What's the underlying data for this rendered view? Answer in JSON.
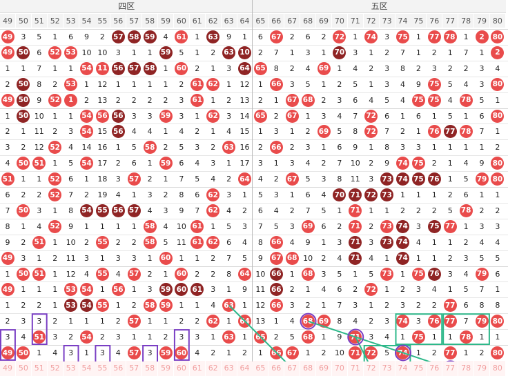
{
  "zones": [
    {
      "label": "四区",
      "start": 49,
      "end": 64
    },
    {
      "label": "五区",
      "start": 65,
      "end": 80
    }
  ],
  "column_numbers": [
    49,
    50,
    51,
    52,
    53,
    54,
    55,
    56,
    57,
    58,
    59,
    60,
    61,
    62,
    63,
    64,
    65,
    66,
    67,
    68,
    69,
    70,
    71,
    72,
    73,
    74,
    75,
    76,
    77,
    78,
    79,
    80
  ],
  "colors": {
    "hit": "#e94b4b",
    "hit_dark": "#8f2424",
    "box_purple": "#7a3fc4",
    "line_green": "#2eb88a"
  },
  "rows": [
    [
      "h",
      "3",
      "5",
      "1",
      "6",
      "9",
      "2",
      "d",
      "d",
      "d",
      "4",
      "h",
      "1",
      "d",
      "9",
      "1",
      "6",
      "h",
      "2",
      "6",
      "2",
      "h",
      "1",
      "h",
      "3",
      "h",
      "1",
      "h",
      "h",
      "1",
      "h",
      "h"
    ],
    [
      "h",
      "d",
      "6",
      "h",
      "h",
      "10",
      "10",
      "3",
      "1",
      "1",
      "d",
      "5",
      "1",
      "2",
      "d",
      "d",
      "2",
      "7",
      "1",
      "3",
      "1",
      "d",
      "3",
      "1",
      "2",
      "7",
      "1",
      "2",
      "1",
      "7",
      "1",
      "h"
    ],
    [
      "1",
      "1",
      "7",
      "1",
      "1",
      "h",
      "h",
      "d",
      "d",
      "d",
      "1",
      "h",
      "2",
      "1",
      "3",
      "d",
      "h",
      "8",
      "2",
      "4",
      "h",
      "1",
      "4",
      "2",
      "3",
      "8",
      "2",
      "3",
      "2",
      "2",
      "3",
      "4"
    ],
    [
      "2",
      "d",
      "8",
      "2",
      "h",
      "1",
      "12",
      "1",
      "1",
      "1",
      "1",
      "2",
      "h",
      "h",
      "1",
      "12",
      "1",
      "h",
      "3",
      "5",
      "1",
      "2",
      "5",
      "1",
      "3",
      "4",
      "9",
      "h",
      "5",
      "4",
      "3",
      "h"
    ],
    [
      "h",
      "d",
      "9",
      "h",
      "h",
      "2",
      "13",
      "2",
      "2",
      "2",
      "2",
      "3",
      "h",
      "1",
      "2",
      "13",
      "2",
      "1",
      "h",
      "h",
      "2",
      "3",
      "6",
      "4",
      "5",
      "4",
      "h",
      "h",
      "4",
      "h",
      "5",
      "1"
    ],
    [
      "1",
      "d",
      "10",
      "1",
      "1",
      "h",
      "h",
      "d",
      "3",
      "3",
      "h",
      "3",
      "1",
      "h",
      "3",
      "14",
      "h",
      "2",
      "h",
      "1",
      "3",
      "4",
      "7",
      "h",
      "6",
      "1",
      "6",
      "1",
      "5",
      "1",
      "6",
      "h"
    ],
    [
      "2",
      "1",
      "11",
      "2",
      "3",
      "h",
      "15",
      "d",
      "4",
      "4",
      "1",
      "4",
      "2",
      "1",
      "4",
      "15",
      "1",
      "3",
      "1",
      "2",
      "h",
      "5",
      "8",
      "h",
      "7",
      "2",
      "1",
      "h",
      "d",
      "h",
      "7",
      "1"
    ],
    [
      "3",
      "2",
      "12",
      "h",
      "4",
      "14",
      "16",
      "1",
      "5",
      "h",
      "2",
      "5",
      "3",
      "2",
      "h",
      "16",
      "2",
      "h",
      "2",
      "3",
      "1",
      "6",
      "9",
      "1",
      "8",
      "3",
      "3",
      "1",
      "1",
      "1",
      "1",
      "2"
    ],
    [
      "4",
      "h",
      "h",
      "1",
      "5",
      "h",
      "17",
      "2",
      "6",
      "1",
      "h",
      "6",
      "4",
      "3",
      "1",
      "17",
      "3",
      "1",
      "3",
      "4",
      "2",
      "7",
      "10",
      "2",
      "9",
      "h",
      "h",
      "2",
      "1",
      "4",
      "9",
      "h"
    ],
    [
      "h",
      "1",
      "1",
      "h",
      "6",
      "1",
      "18",
      "3",
      "h",
      "2",
      "1",
      "7",
      "5",
      "4",
      "2",
      "h",
      "4",
      "2",
      "h",
      "5",
      "3",
      "8",
      "11",
      "3",
      "d",
      "d",
      "d",
      "d",
      "1",
      "5",
      "h",
      "h"
    ],
    [
      "6",
      "2",
      "2",
      "h",
      "7",
      "2",
      "19",
      "4",
      "1",
      "3",
      "2",
      "8",
      "6",
      "h",
      "3",
      "1",
      "5",
      "3",
      "1",
      "6",
      "4",
      "d",
      "d",
      "d",
      "d",
      "1",
      "1",
      "1",
      "2",
      "6",
      "1",
      "1"
    ],
    [
      "7",
      "h",
      "3",
      "1",
      "8",
      "d",
      "d",
      "d",
      "d",
      "4",
      "3",
      "9",
      "7",
      "h",
      "4",
      "2",
      "6",
      "4",
      "2",
      "7",
      "5",
      "1",
      "h",
      "1",
      "1",
      "2",
      "2",
      "2",
      "5",
      "h",
      "2",
      "2"
    ],
    [
      "8",
      "1",
      "4",
      "h",
      "9",
      "1",
      "1",
      "1",
      "1",
      "h",
      "4",
      "10",
      "h",
      "1",
      "5",
      "3",
      "7",
      "5",
      "3",
      "h",
      "6",
      "2",
      "h",
      "2",
      "h",
      "d",
      "3",
      "d",
      "h",
      "1",
      "3",
      "3"
    ],
    [
      "9",
      "2",
      "h",
      "1",
      "10",
      "2",
      "h",
      "2",
      "2",
      "h",
      "5",
      "11",
      "h",
      "h",
      "6",
      "4",
      "8",
      "h",
      "4",
      "9",
      "1",
      "3",
      "d",
      "3",
      "d",
      "d",
      "4",
      "1",
      "1",
      "2",
      "4",
      "4"
    ],
    [
      "h",
      "3",
      "1",
      "2",
      "11",
      "3",
      "1",
      "3",
      "3",
      "1",
      "h",
      "1",
      "1",
      "2",
      "7",
      "5",
      "9",
      "h",
      "h",
      "10",
      "2",
      "4",
      "d",
      "4",
      "1",
      "d",
      "1",
      "1",
      "2",
      "3",
      "5",
      "5"
    ],
    [
      "1",
      "h",
      "h",
      "1",
      "12",
      "4",
      "h",
      "4",
      "h",
      "2",
      "1",
      "h",
      "2",
      "2",
      "8",
      "h",
      "10",
      "d",
      "1",
      "h",
      "3",
      "5",
      "1",
      "5",
      "h",
      "1",
      "h",
      "d",
      "3",
      "4",
      "h",
      "6"
    ],
    [
      "h",
      "1",
      "1",
      "1",
      "h",
      "h",
      "1",
      "h",
      "1",
      "3",
      "d",
      "d",
      "d",
      "3",
      "1",
      "9",
      "11",
      "d",
      "2",
      "1",
      "4",
      "6",
      "2",
      "h",
      "1",
      "2",
      "3",
      "4",
      "1",
      "5",
      "7",
      "1"
    ],
    [
      "1",
      "2",
      "2",
      "1",
      "d",
      "d",
      "h",
      "1",
      "2",
      "h",
      "h",
      "1",
      "1",
      "4",
      "h",
      "1",
      "12",
      "h",
      "3",
      "2",
      "1",
      "7",
      "3",
      "1",
      "2",
      "3",
      "2",
      "2",
      "h",
      "6",
      "8",
      "8"
    ],
    [
      "2",
      "3",
      "3",
      "2",
      "1",
      "1",
      "1",
      "2",
      "h",
      "1",
      "1",
      "2",
      "2",
      "h",
      "1",
      "h",
      "13",
      "1",
      "4",
      "h",
      "h",
      "8",
      "4",
      "2",
      "3",
      "h",
      "3",
      "h",
      "h",
      "7",
      "h",
      "h"
    ],
    [
      "3",
      "4",
      "h",
      "3",
      "2",
      "h",
      "2",
      "3",
      "1",
      "1",
      "2",
      "3",
      "3",
      "1",
      "h",
      "1",
      "h",
      "2",
      "5",
      "h",
      "1",
      "9",
      "h",
      "3",
      "4",
      "1",
      "h",
      "1",
      "1",
      "h",
      "1",
      "1"
    ],
    [
      "h",
      "h",
      "1",
      "4",
      "3",
      "1",
      "3",
      "4",
      "h",
      "3",
      "h",
      "h",
      "4",
      "2",
      "1",
      "2",
      "1",
      "h",
      "h",
      "1",
      "2",
      "10",
      "h",
      "h",
      "5",
      "h",
      "1",
      "2",
      "h",
      "1",
      "2",
      "h"
    ]
  ],
  "row_values": [
    [
      "49",
      "3",
      "5",
      "1",
      "6",
      "9",
      "2",
      "57",
      "58",
      "59",
      "4",
      "61",
      "1",
      "63",
      "9",
      "1",
      "6",
      "67",
      "2",
      "6",
      "2",
      "72",
      "1",
      "74",
      "3",
      "75",
      "1",
      "77",
      "78",
      "1",
      "2",
      "80"
    ],
    [
      "49",
      "50",
      "6",
      "52",
      "53",
      "10",
      "10",
      "3",
      "1",
      "1",
      "59",
      "5",
      "1",
      "2",
      "63",
      "10",
      "2",
      "7",
      "1",
      "3",
      "1",
      "70",
      "3",
      "1",
      "2",
      "7",
      "1",
      "2",
      "1",
      "7",
      "1",
      "2"
    ],
    [
      "1",
      "1",
      "7",
      "1",
      "1",
      "54",
      "11",
      "56",
      "57",
      "58",
      "1",
      "60",
      "2",
      "1",
      "3",
      "64",
      "65",
      "8",
      "2",
      "4",
      "69",
      "1",
      "4",
      "2",
      "3",
      "8",
      "2",
      "3",
      "2",
      "2",
      "3",
      "4"
    ],
    [
      "2",
      "50",
      "8",
      "2",
      "53",
      "1",
      "12",
      "1",
      "1",
      "1",
      "1",
      "2",
      "61",
      "62",
      "1",
      "12",
      "1",
      "66",
      "3",
      "5",
      "1",
      "2",
      "5",
      "1",
      "3",
      "4",
      "9",
      "75",
      "5",
      "4",
      "3",
      "80"
    ],
    [
      "49",
      "50",
      "9",
      "52",
      "1",
      "2",
      "13",
      "2",
      "2",
      "2",
      "2",
      "3",
      "61",
      "1",
      "2",
      "13",
      "2",
      "1",
      "67",
      "68",
      "2",
      "3",
      "6",
      "4",
      "5",
      "4",
      "75",
      "75",
      "4",
      "78",
      "5",
      "1"
    ],
    [
      "1",
      "50",
      "10",
      "1",
      "1",
      "54",
      "56",
      "56",
      "3",
      "3",
      "59",
      "3",
      "1",
      "62",
      "3",
      "14",
      "65",
      "2",
      "67",
      "1",
      "3",
      "4",
      "7",
      "72",
      "6",
      "1",
      "6",
      "1",
      "5",
      "1",
      "6",
      "80"
    ],
    [
      "2",
      "1",
      "11",
      "2",
      "3",
      "54",
      "15",
      "56",
      "4",
      "4",
      "1",
      "4",
      "2",
      "1",
      "4",
      "15",
      "1",
      "3",
      "1",
      "2",
      "69",
      "5",
      "8",
      "72",
      "7",
      "2",
      "1",
      "76",
      "77",
      "78",
      "7",
      "1"
    ],
    [
      "3",
      "2",
      "12",
      "52",
      "4",
      "14",
      "16",
      "1",
      "5",
      "58",
      "2",
      "5",
      "3",
      "2",
      "63",
      "16",
      "2",
      "66",
      "2",
      "3",
      "1",
      "6",
      "9",
      "1",
      "8",
      "3",
      "3",
      "1",
      "1",
      "1",
      "1",
      "2"
    ],
    [
      "4",
      "50",
      "51",
      "1",
      "5",
      "54",
      "17",
      "2",
      "6",
      "1",
      "59",
      "6",
      "4",
      "3",
      "1",
      "17",
      "3",
      "1",
      "3",
      "4",
      "2",
      "7",
      "10",
      "2",
      "9",
      "74",
      "75",
      "2",
      "1",
      "4",
      "9",
      "80"
    ],
    [
      "51",
      "1",
      "1",
      "52",
      "6",
      "1",
      "18",
      "3",
      "57",
      "2",
      "1",
      "7",
      "5",
      "4",
      "2",
      "64",
      "4",
      "2",
      "67",
      "5",
      "3",
      "8",
      "11",
      "3",
      "73",
      "74",
      "75",
      "76",
      "1",
      "5",
      "79",
      "80"
    ],
    [
      "6",
      "2",
      "2",
      "52",
      "7",
      "2",
      "19",
      "4",
      "1",
      "3",
      "2",
      "8",
      "6",
      "62",
      "3",
      "1",
      "5",
      "3",
      "1",
      "6",
      "4",
      "70",
      "71",
      "72",
      "73",
      "1",
      "1",
      "1",
      "2",
      "6",
      "1",
      "1"
    ],
    [
      "7",
      "50",
      "3",
      "1",
      "8",
      "54",
      "55",
      "56",
      "57",
      "4",
      "3",
      "9",
      "7",
      "62",
      "4",
      "2",
      "6",
      "4",
      "2",
      "7",
      "5",
      "1",
      "71",
      "1",
      "1",
      "2",
      "2",
      "2",
      "5",
      "78",
      "2",
      "2"
    ],
    [
      "8",
      "1",
      "4",
      "52",
      "9",
      "1",
      "1",
      "1",
      "1",
      "58",
      "4",
      "10",
      "61",
      "1",
      "5",
      "3",
      "7",
      "5",
      "3",
      "69",
      "6",
      "2",
      "71",
      "2",
      "73",
      "74",
      "3",
      "75",
      "77",
      "1",
      "3",
      "3"
    ],
    [
      "9",
      "2",
      "51",
      "1",
      "10",
      "2",
      "55",
      "2",
      "2",
      "58",
      "5",
      "11",
      "61",
      "62",
      "6",
      "4",
      "8",
      "66",
      "4",
      "9",
      "1",
      "3",
      "71",
      "3",
      "73",
      "74",
      "4",
      "1",
      "1",
      "2",
      "4",
      "4"
    ],
    [
      "49",
      "3",
      "1",
      "2",
      "11",
      "3",
      "1",
      "3",
      "3",
      "1",
      "60",
      "1",
      "1",
      "2",
      "7",
      "5",
      "9",
      "67",
      "68",
      "10",
      "2",
      "4",
      "71",
      "4",
      "1",
      "74",
      "1",
      "1",
      "2",
      "3",
      "5",
      "5"
    ],
    [
      "1",
      "50",
      "51",
      "1",
      "12",
      "4",
      "55",
      "4",
      "57",
      "2",
      "1",
      "60",
      "2",
      "2",
      "8",
      "64",
      "10",
      "66",
      "1",
      "68",
      "3",
      "5",
      "1",
      "5",
      "73",
      "1",
      "75",
      "76",
      "3",
      "4",
      "79",
      "6"
    ],
    [
      "49",
      "1",
      "1",
      "1",
      "53",
      "54",
      "1",
      "56",
      "1",
      "3",
      "59",
      "60",
      "61",
      "3",
      "1",
      "9",
      "11",
      "66",
      "2",
      "1",
      "4",
      "6",
      "2",
      "72",
      "1",
      "2",
      "3",
      "4",
      "1",
      "5",
      "7",
      "1"
    ],
    [
      "1",
      "2",
      "2",
      "1",
      "53",
      "54",
      "55",
      "1",
      "2",
      "58",
      "59",
      "1",
      "1",
      "4",
      "63",
      "1",
      "12",
      "66",
      "3",
      "2",
      "1",
      "7",
      "3",
      "1",
      "2",
      "3",
      "2",
      "2",
      "77",
      "6",
      "8",
      "8"
    ],
    [
      "2",
      "3",
      "3",
      "2",
      "1",
      "1",
      "1",
      "2",
      "57",
      "1",
      "1",
      "2",
      "2",
      "62",
      "1",
      "64",
      "13",
      "1",
      "4",
      "68",
      "69",
      "8",
      "4",
      "2",
      "3",
      "74",
      "3",
      "76",
      "77",
      "7",
      "79",
      "80"
    ],
    [
      "3",
      "4",
      "51",
      "3",
      "2",
      "54",
      "2",
      "3",
      "1",
      "1",
      "2",
      "3",
      "3",
      "1",
      "63",
      "1",
      "65",
      "2",
      "5",
      "68",
      "1",
      "9",
      "71",
      "3",
      "4",
      "1",
      "75",
      "1",
      "1",
      "78",
      "1",
      "1"
    ],
    [
      "49",
      "50",
      "1",
      "4",
      "3",
      "1",
      "3",
      "4",
      "57",
      "3",
      "59",
      "60",
      "4",
      "2",
      "1",
      "2",
      "1",
      "66",
      "67",
      "1",
      "2",
      "10",
      "71",
      "72",
      "5",
      "74",
      "1",
      "2",
      "77",
      "1",
      "2",
      "80"
    ]
  ],
  "footer": [
    "49",
    "50",
    "51",
    "52",
    "53",
    "54",
    "55",
    "56",
    "57",
    "58",
    "59",
    "60",
    "61",
    "62",
    "63",
    "64",
    "65",
    "66",
    "67",
    "68",
    "69",
    "70",
    "71",
    "72",
    "73",
    "74",
    "75",
    "76",
    "77",
    "78",
    "79",
    "80"
  ]
}
